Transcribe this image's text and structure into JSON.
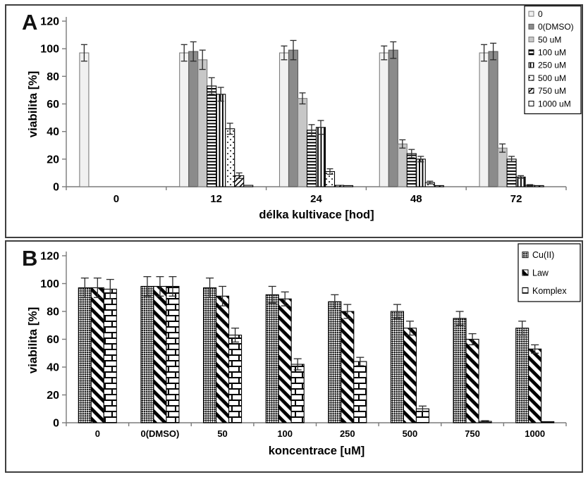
{
  "figure": {
    "panels": [
      {
        "label": "A"
      },
      {
        "label": "B"
      }
    ]
  },
  "chart_data": [
    {
      "id": "A",
      "type": "bar",
      "title": "",
      "xlabel": "délka kultivace [hod]",
      "ylabel": "viabilita [%]",
      "ylim": [
        0,
        120
      ],
      "ytick_step": 20,
      "grid": false,
      "legend_position": "top-right",
      "categories": [
        "0",
        "12",
        "24",
        "48",
        "72"
      ],
      "series": [
        {
          "name": "0",
          "pattern": "solid-lightest",
          "values": [
            97,
            97,
            97,
            97,
            97
          ],
          "errors": [
            6,
            6,
            5,
            5,
            6
          ]
        },
        {
          "name": "0(DMSO)",
          "pattern": "solid-dark-gray",
          "values": [
            null,
            98,
            99,
            99,
            98
          ],
          "errors": [
            null,
            7,
            7,
            6,
            6
          ]
        },
        {
          "name": "50 uM",
          "pattern": "solid-light-gray",
          "values": [
            null,
            92,
            64,
            31,
            28
          ],
          "errors": [
            null,
            7,
            4,
            3,
            3
          ]
        },
        {
          "name": "100 uM",
          "pattern": "h-stripes",
          "values": [
            null,
            73,
            41,
            24,
            20
          ],
          "errors": [
            null,
            6,
            4,
            3,
            2
          ]
        },
        {
          "name": "250 uM",
          "pattern": "v-stripes",
          "values": [
            null,
            67,
            43,
            20,
            7
          ],
          "errors": [
            null,
            5,
            5,
            2,
            1
          ]
        },
        {
          "name": "500 uM",
          "pattern": "dots",
          "values": [
            null,
            42,
            11,
            3,
            1
          ],
          "errors": [
            null,
            4,
            2,
            1,
            0.5
          ]
        },
        {
          "name": "750 uM",
          "pattern": "diag-thin",
          "values": [
            null,
            8,
            1,
            0.5,
            0.5
          ],
          "errors": [
            null,
            2,
            0,
            0,
            0
          ]
        },
        {
          "name": "1000 uM",
          "pattern": "solid-white",
          "values": [
            null,
            1,
            0.5,
            0,
            0
          ],
          "errors": [
            null,
            0,
            0,
            0,
            0
          ]
        }
      ]
    },
    {
      "id": "B",
      "type": "bar",
      "title": "",
      "xlabel": "koncentrace [uM]",
      "ylabel": "viabilita [%]",
      "ylim": [
        0,
        120
      ],
      "ytick_step": 20,
      "grid": false,
      "legend_position": "top-right",
      "categories": [
        "0",
        "0(DMSO)",
        "50",
        "100",
        "250",
        "500",
        "750",
        "1000"
      ],
      "series": [
        {
          "name": "Cu(II)",
          "pattern": "checker",
          "values": [
            97,
            98,
            97,
            92,
            87,
            80,
            75,
            68
          ],
          "errors": [
            7,
            7,
            7,
            6,
            5,
            5,
            5,
            5
          ]
        },
        {
          "name": "Law",
          "pattern": "diag-wide",
          "values": [
            97,
            98,
            91,
            89,
            80,
            68,
            60,
            53
          ],
          "errors": [
            7,
            7,
            7,
            5,
            5,
            5,
            4,
            3
          ]
        },
        {
          "name": "Komplex",
          "pattern": "brick",
          "values": [
            96,
            98,
            63,
            42,
            44,
            10,
            1,
            0.5
          ],
          "errors": [
            7,
            7,
            5,
            4,
            3,
            2,
            0.5,
            0
          ]
        }
      ]
    }
  ]
}
